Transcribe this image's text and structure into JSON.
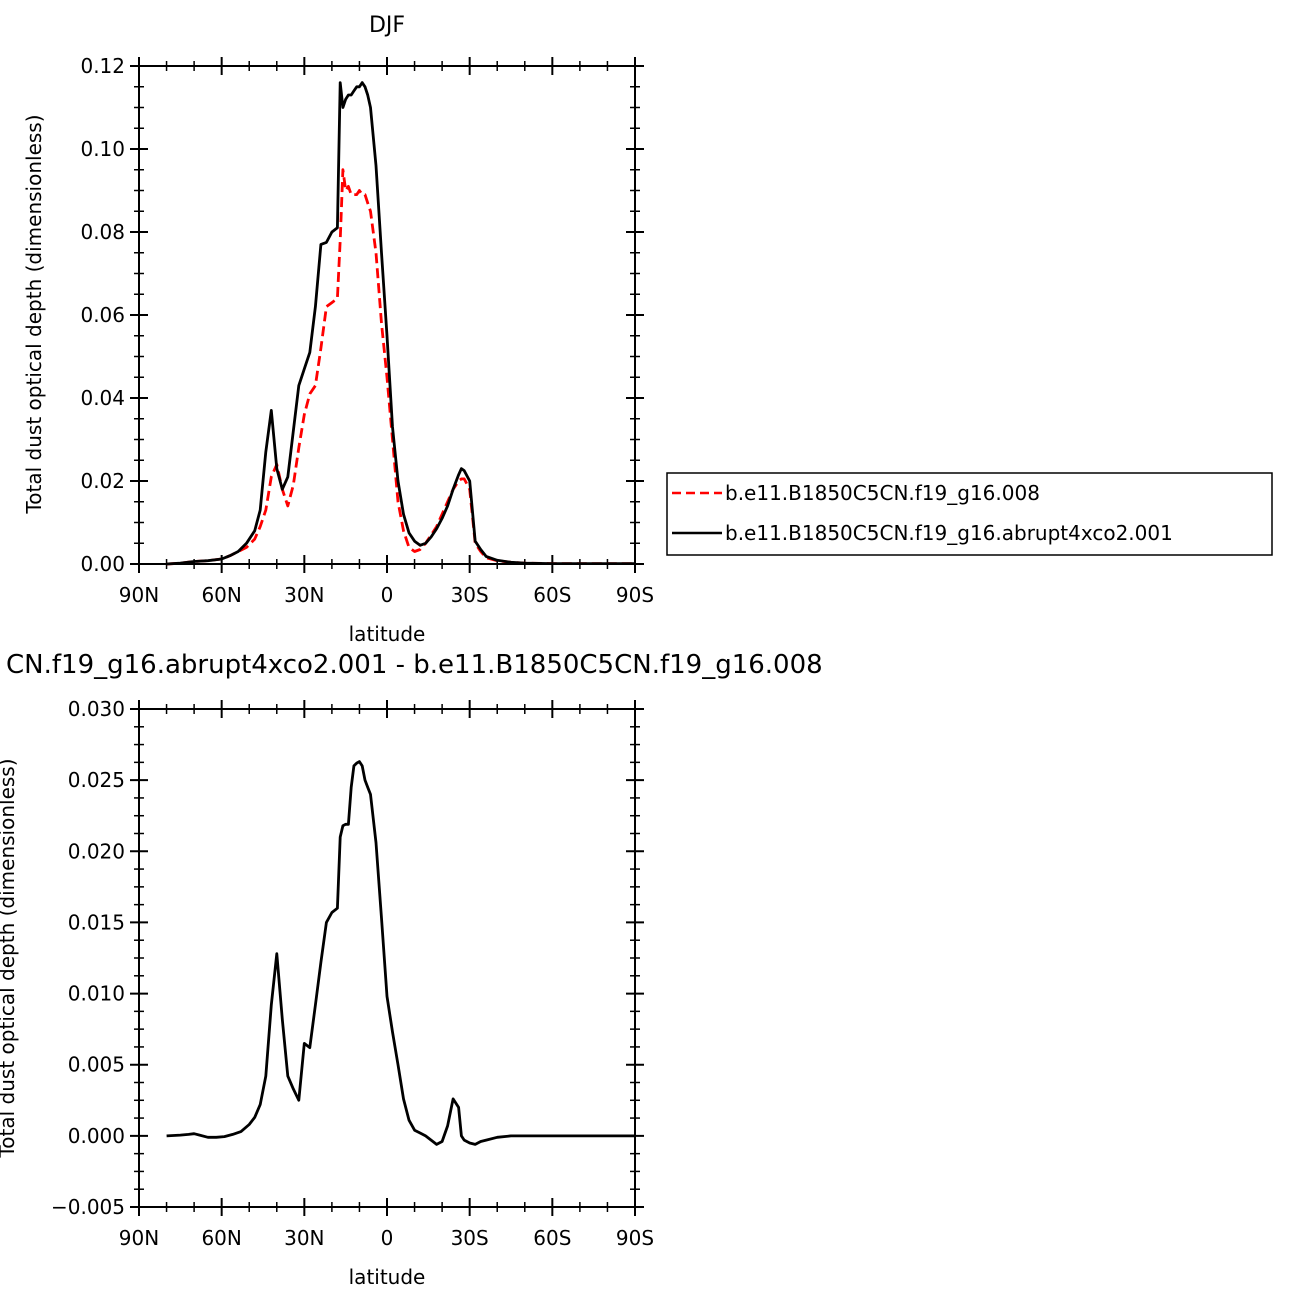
{
  "chart_data": [
    {
      "type": "line",
      "title": "DJF",
      "xlabel": "latitude",
      "ylabel": "Total dust optical depth (dimensionless)",
      "xlim": [
        90,
        -90
      ],
      "ylim": [
        0,
        0.12
      ],
      "xticks": [
        90,
        60,
        30,
        0,
        -30,
        -60,
        -90
      ],
      "xtick_labels": [
        "90N",
        "60N",
        "30N",
        "0",
        "30S",
        "60S",
        "90S"
      ],
      "yticks": [
        0,
        0.02,
        0.04,
        0.06,
        0.08,
        0.1,
        0.12
      ],
      "ytick_labels": [
        "0.00",
        "0.02",
        "0.04",
        "0.06",
        "0.08",
        "0.10",
        "0.12"
      ],
      "legend_position": "right",
      "series": [
        {
          "name": "b.e11.B1850C5CN.f19_g16.008",
          "color": "#ff0000",
          "dash": "dashed",
          "x": [
            80,
            75,
            70,
            65,
            60,
            57,
            54,
            51,
            48,
            46,
            44,
            42,
            40,
            38,
            36,
            34,
            32,
            30,
            28,
            26,
            24,
            22,
            20,
            18,
            17,
            16,
            15,
            14,
            13,
            12,
            11,
            10,
            9,
            8,
            7,
            6,
            4,
            2,
            0,
            -2,
            -4,
            -6,
            -8,
            -10,
            -12,
            -14,
            -16,
            -18,
            -20,
            -22,
            -24,
            -26,
            -27,
            -28,
            -30,
            -32,
            -34,
            -36,
            -40,
            -45,
            -50,
            -60,
            -70,
            -80,
            -90
          ],
          "y": [
            0,
            0.0002,
            0.0006,
            0.0008,
            0.0012,
            0.002,
            0.003,
            0.004,
            0.006,
            0.009,
            0.013,
            0.021,
            0.024,
            0.018,
            0.014,
            0.019,
            0.028,
            0.036,
            0.041,
            0.043,
            0.052,
            0.062,
            0.063,
            0.064,
            0.078,
            0.095,
            0.09,
            0.091,
            0.089,
            0.089,
            0.089,
            0.09,
            0.089,
            0.089,
            0.087,
            0.085,
            0.075,
            0.058,
            0.045,
            0.03,
            0.015,
            0.008,
            0.004,
            0.003,
            0.0035,
            0.005,
            0.007,
            0.009,
            0.012,
            0.015,
            0.018,
            0.02,
            0.0205,
            0.0205,
            0.018,
            0.005,
            0.003,
            0.0015,
            0.0008,
            0.0004,
            0.0002,
            0.0001,
            0.0001,
            0.0001,
            0.0001
          ]
        },
        {
          "name": "b.e11.B1850C5CN.f19_g16.abrupt4xco2.001",
          "color": "#000000",
          "dash": "solid",
          "x": [
            80,
            75,
            70,
            65,
            60,
            57,
            54,
            51,
            48,
            46,
            44,
            42,
            40,
            38,
            36,
            34,
            32,
            30,
            28,
            26,
            24,
            22,
            20,
            18,
            17,
            16,
            15,
            14,
            13,
            12,
            11,
            10,
            9,
            8,
            7,
            6,
            4,
            2,
            0,
            -2,
            -4,
            -6,
            -8,
            -10,
            -12,
            -14,
            -16,
            -18,
            -20,
            -22,
            -24,
            -26,
            -27,
            -28,
            -30,
            -32,
            -34,
            -36,
            -40,
            -45,
            -50,
            -60,
            -70,
            -80,
            -90
          ],
          "y": [
            0,
            0.0002,
            0.0006,
            0.0008,
            0.0012,
            0.002,
            0.003,
            0.005,
            0.008,
            0.013,
            0.027,
            0.037,
            0.023,
            0.018,
            0.021,
            0.032,
            0.043,
            0.047,
            0.051,
            0.062,
            0.077,
            0.0775,
            0.08,
            0.081,
            0.116,
            0.11,
            0.112,
            0.113,
            0.113,
            0.114,
            0.115,
            0.115,
            0.116,
            0.115,
            0.113,
            0.11,
            0.096,
            0.075,
            0.055,
            0.033,
            0.02,
            0.012,
            0.0075,
            0.0055,
            0.0045,
            0.005,
            0.0065,
            0.0085,
            0.011,
            0.014,
            0.018,
            0.0215,
            0.023,
            0.0225,
            0.02,
            0.0055,
            0.0035,
            0.0018,
            0.0009,
            0.0004,
            0.0002,
            0.0001,
            0.0001,
            0.0001,
            0.0001
          ]
        }
      ]
    },
    {
      "type": "line",
      "title": "CN.f19_g16.abrupt4xco2.001 - b.e11.B1850C5CN.f19_g16.008",
      "xlabel": "latitude",
      "ylabel": "Total dust optical depth (dimensionless)",
      "xlim": [
        90,
        -90
      ],
      "ylim": [
        -0.005,
        0.03
      ],
      "xticks": [
        90,
        60,
        30,
        0,
        -30,
        -60,
        -90
      ],
      "xtick_labels": [
        "90N",
        "60N",
        "30N",
        "0",
        "30S",
        "60S",
        "90S"
      ],
      "yticks": [
        -0.005,
        0,
        0.005,
        0.01,
        0.015,
        0.02,
        0.025,
        0.03
      ],
      "ytick_labels": [
        "−0.005",
        "0.000",
        "0.005",
        "0.010",
        "0.015",
        "0.020",
        "0.025",
        "0.030"
      ],
      "series": [
        {
          "color": "#000000",
          "dash": "solid",
          "x": [
            80,
            75,
            72,
            70,
            68,
            65,
            62,
            59,
            56,
            53,
            50,
            48,
            46,
            44,
            42,
            40,
            38,
            36,
            34,
            32,
            30,
            28,
            26,
            24,
            22,
            20,
            18,
            17,
            16,
            15,
            14,
            13,
            12,
            11,
            10,
            9,
            8,
            7,
            6,
            4,
            2,
            0,
            -2,
            -4,
            -6,
            -8,
            -10,
            -12,
            -14,
            -16,
            -18,
            -20,
            -22,
            -24,
            -26,
            -27,
            -28,
            -30,
            -32,
            -34,
            -36,
            -40,
            -45,
            -50,
            -60,
            -70,
            -80,
            -90
          ],
          "y": [
            0,
            5e-05,
            0.0001,
            0.00015,
            5e-05,
            -0.0001,
            -0.0001,
            -5e-05,
            0.0001,
            0.0003,
            0.0008,
            0.0013,
            0.0022,
            0.0042,
            0.0092,
            0.0128,
            0.0082,
            0.0042,
            0.0033,
            0.0025,
            0.0065,
            0.0062,
            0.0092,
            0.0122,
            0.015,
            0.0157,
            0.016,
            0.021,
            0.0218,
            0.0219,
            0.0219,
            0.0245,
            0.026,
            0.0262,
            0.0263,
            0.026,
            0.025,
            0.0245,
            0.024,
            0.0206,
            0.0153,
            0.0098,
            0.0073,
            0.005,
            0.0026,
            0.0011,
            0.0004,
            0.0002,
            0.0,
            -0.0003,
            -0.0006,
            -0.0004,
            0.0007,
            0.0026,
            0.002,
            0.0,
            -0.0003,
            -0.0005,
            -0.0006,
            -0.0004,
            -0.0003,
            -0.0001,
            0,
            0,
            0,
            0,
            0,
            0
          ]
        }
      ]
    }
  ]
}
